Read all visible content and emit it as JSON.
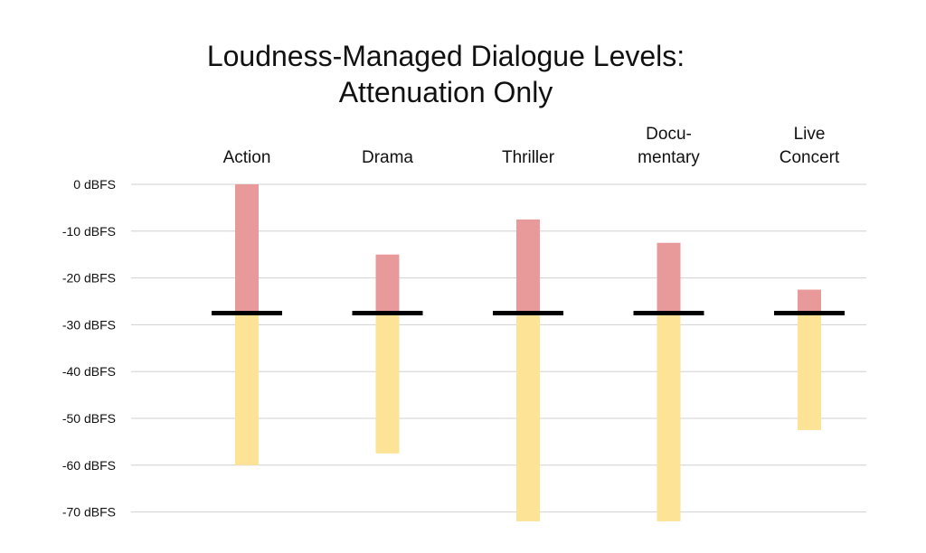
{
  "chart_data": {
    "type": "bar",
    "title": [
      "Loudness-Managed Dialogue Levels:",
      "Attenuation Only"
    ],
    "xlabel": "",
    "ylabel": "",
    "ylim": [
      -72,
      0
    ],
    "yticks": [
      0,
      -10,
      -20,
      -30,
      -40,
      -50,
      -60,
      -70
    ],
    "ytick_labels": [
      "0 dBFS",
      "-10 dBFS",
      "-20 dBFS",
      "-30 dBFS",
      "-40 dBFS",
      "-50 dBFS",
      "-60 dBFS",
      "-70 dBFS"
    ],
    "grid": true,
    "reference_level": -27.5,
    "categories": [
      {
        "label_lines": [
          "Action"
        ],
        "top": 0,
        "bottom": -60
      },
      {
        "label_lines": [
          "Drama"
        ],
        "top": -15,
        "bottom": -57.5
      },
      {
        "label_lines": [
          "Thriller"
        ],
        "top": -7.5,
        "bottom": -72
      },
      {
        "label_lines": [
          "Docu-",
          "mentary"
        ],
        "top": -12.5,
        "bottom": -72
      },
      {
        "label_lines": [
          "Live",
          "Concert"
        ],
        "top": -22.5,
        "bottom": -52.5
      }
    ],
    "colors": {
      "above_reference": "#e89a9a",
      "below_reference": "#fde396",
      "reference_line": "#000000",
      "grid": "#d0d0d0"
    }
  }
}
